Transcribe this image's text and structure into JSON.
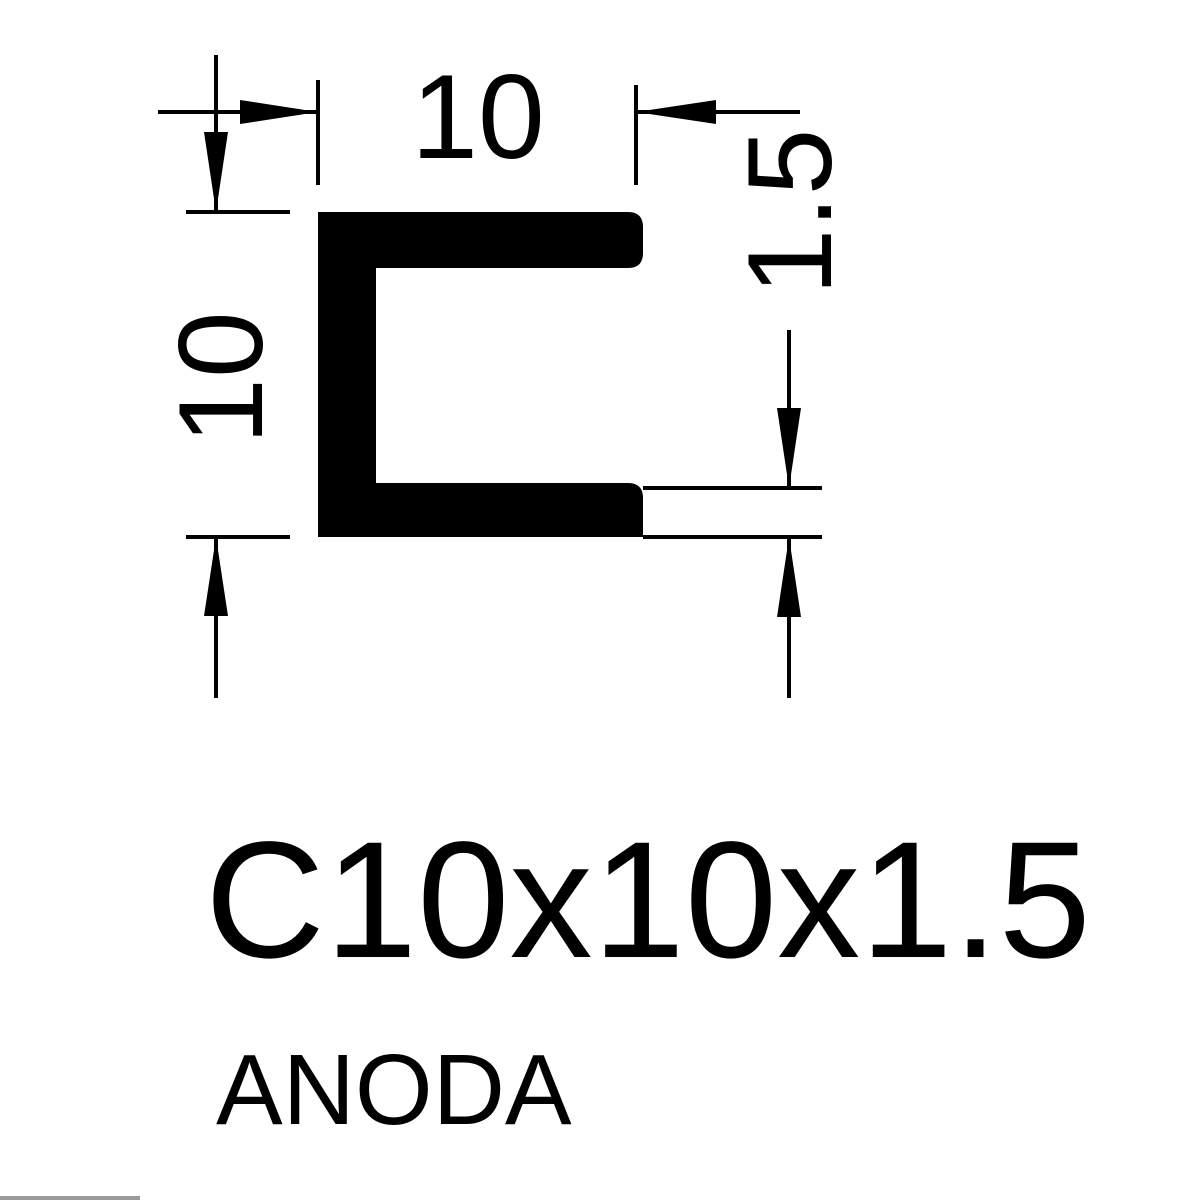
{
  "drawing": {
    "dimensions": {
      "width_top": "10",
      "height_left": "10",
      "thickness_top": "1.5",
      "thickness_bottom": "1.5"
    },
    "profile_code": "C10x10x1.5",
    "finish": "ANODA",
    "colors": {
      "ink": "#000000",
      "background": "#ffffff"
    }
  }
}
